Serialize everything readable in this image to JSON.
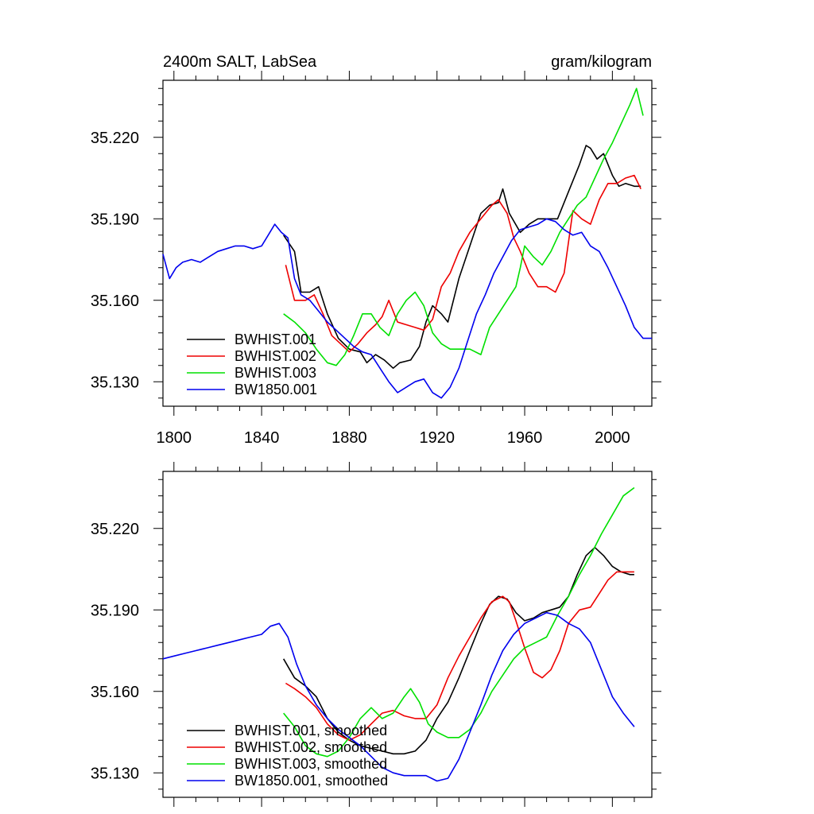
{
  "colors": {
    "BWHIST.001": "#000000",
    "BWHIST.002": "#ee0000",
    "BWHIST.003": "#00e000",
    "BW1850.001": "#0000ee"
  },
  "chart_data": [
    {
      "type": "line",
      "title": "2400m SALT, LabSea",
      "units": "gram/kilogram",
      "xlim": [
        1795,
        2018
      ],
      "ylim": [
        35.121,
        35.241
      ],
      "xticks": [
        1800,
        1840,
        1880,
        1920,
        1960,
        2000
      ],
      "xtick_labels": [
        "1800",
        "1840",
        "1880",
        "1920",
        "1960",
        "2000"
      ],
      "yticks": [
        35.13,
        35.16,
        35.19,
        35.22
      ],
      "ytick_labels": [
        "35.130",
        "35.160",
        "35.190",
        "35.220"
      ],
      "legend_position": "bottom-left",
      "series": [
        {
          "name": "BWHIST.001",
          "label": "BWHIST.001",
          "x": [
            1850,
            1855,
            1858,
            1862,
            1866,
            1870,
            1875,
            1880,
            1885,
            1888,
            1892,
            1896,
            1900,
            1903,
            1908,
            1912,
            1915,
            1918,
            1922,
            1925,
            1930,
            1935,
            1940,
            1944,
            1948,
            1950,
            1953,
            1958,
            1962,
            1966,
            1970,
            1975,
            1980,
            1985,
            1988,
            1990,
            1993,
            1996,
            2000,
            2003,
            2006,
            2010,
            2013
          ],
          "y": [
            35.184,
            35.178,
            35.163,
            35.163,
            35.165,
            35.155,
            35.146,
            35.142,
            35.141,
            35.137,
            35.14,
            35.138,
            35.135,
            35.137,
            35.138,
            35.143,
            35.152,
            35.158,
            35.155,
            35.152,
            35.168,
            35.18,
            35.192,
            35.195,
            35.196,
            35.201,
            35.192,
            35.185,
            35.188,
            35.19,
            35.19,
            35.19,
            35.2,
            35.21,
            35.217,
            35.216,
            35.212,
            35.214,
            35.206,
            35.202,
            35.203,
            35.202,
            35.202
          ]
        },
        {
          "name": "BWHIST.002",
          "label": "BWHIST.002",
          "x": [
            1851,
            1855,
            1860,
            1864,
            1868,
            1872,
            1876,
            1880,
            1884,
            1888,
            1892,
            1895,
            1898,
            1902,
            1906,
            1910,
            1914,
            1918,
            1922,
            1926,
            1930,
            1935,
            1940,
            1945,
            1948,
            1952,
            1955,
            1958,
            1962,
            1966,
            1970,
            1974,
            1978,
            1982,
            1986,
            1990,
            1994,
            1998,
            2002,
            2006,
            2010,
            2013
          ],
          "y": [
            35.173,
            35.16,
            35.16,
            35.162,
            35.155,
            35.147,
            35.144,
            35.141,
            35.144,
            35.148,
            35.151,
            35.154,
            35.16,
            35.152,
            35.151,
            35.15,
            35.149,
            35.153,
            35.165,
            35.17,
            35.178,
            35.185,
            35.19,
            35.195,
            35.197,
            35.192,
            35.183,
            35.178,
            35.17,
            35.165,
            35.165,
            35.163,
            35.17,
            35.193,
            35.19,
            35.188,
            35.197,
            35.203,
            35.203,
            35.205,
            35.206,
            35.201
          ]
        },
        {
          "name": "BWHIST.003",
          "label": "BWHIST.003",
          "x": [
            1850,
            1855,
            1860,
            1865,
            1870,
            1874,
            1878,
            1882,
            1886,
            1890,
            1894,
            1898,
            1902,
            1906,
            1910,
            1914,
            1918,
            1922,
            1926,
            1930,
            1935,
            1940,
            1944,
            1948,
            1952,
            1956,
            1958,
            1960,
            1964,
            1968,
            1972,
            1976,
            1980,
            1984,
            1988,
            1992,
            1996,
            2000,
            2004,
            2008,
            2011,
            2014
          ],
          "y": [
            35.155,
            35.152,
            35.148,
            35.142,
            35.137,
            35.136,
            35.14,
            35.147,
            35.155,
            35.155,
            35.15,
            35.147,
            35.155,
            35.16,
            35.163,
            35.158,
            35.148,
            35.144,
            35.142,
            35.142,
            35.142,
            35.14,
            35.15,
            35.155,
            35.16,
            35.165,
            35.172,
            35.18,
            35.176,
            35.173,
            35.178,
            35.185,
            35.19,
            35.195,
            35.198,
            35.205,
            35.212,
            35.218,
            35.225,
            35.232,
            35.238,
            35.228
          ]
        },
        {
          "name": "BW1850.001",
          "label": "BW1850.001",
          "x": [
            1795,
            1798,
            1801,
            1804,
            1808,
            1812,
            1816,
            1820,
            1824,
            1828,
            1832,
            1836,
            1840,
            1843,
            1846,
            1849,
            1852,
            1855,
            1858,
            1862,
            1866,
            1870,
            1874,
            1878,
            1882,
            1886,
            1890,
            1894,
            1898,
            1902,
            1906,
            1910,
            1914,
            1918,
            1922,
            1926,
            1930,
            1934,
            1938,
            1942,
            1946,
            1950,
            1954,
            1958,
            1962,
            1966,
            1970,
            1974,
            1978,
            1982,
            1986,
            1990,
            1994,
            1998,
            2002,
            2006,
            2010,
            2014,
            2018
          ],
          "y": [
            35.177,
            35.168,
            35.172,
            35.174,
            35.175,
            35.174,
            35.176,
            35.178,
            35.179,
            35.18,
            35.18,
            35.179,
            35.18,
            35.184,
            35.188,
            35.185,
            35.183,
            35.168,
            35.162,
            35.16,
            35.156,
            35.152,
            35.149,
            35.146,
            35.143,
            35.141,
            35.14,
            35.135,
            35.13,
            35.126,
            35.128,
            35.13,
            35.131,
            35.126,
            35.124,
            35.128,
            35.135,
            35.145,
            35.155,
            35.162,
            35.17,
            35.176,
            35.182,
            35.186,
            35.187,
            35.188,
            35.19,
            35.189,
            35.186,
            35.184,
            35.185,
            35.18,
            35.178,
            35.172,
            35.165,
            35.158,
            35.15,
            35.146,
            35.146
          ]
        }
      ]
    },
    {
      "type": "line",
      "title": "",
      "units": "",
      "xlim": [
        1795,
        2018
      ],
      "ylim": [
        35.121,
        35.241
      ],
      "xticks": [
        1800,
        1840,
        1880,
        1920,
        1960,
        2000
      ],
      "xtick_labels": [],
      "yticks": [
        35.13,
        35.16,
        35.19,
        35.22
      ],
      "ytick_labels": [
        "35.130",
        "35.160",
        "35.190",
        "35.220"
      ],
      "legend_position": "bottom-left",
      "series": [
        {
          "name": "BWHIST.001",
          "label": "BWHIST.001, smoothed",
          "x": [
            1850,
            1855,
            1860,
            1865,
            1870,
            1875,
            1880,
            1885,
            1890,
            1895,
            1900,
            1905,
            1910,
            1915,
            1920,
            1925,
            1930,
            1935,
            1940,
            1944,
            1948,
            1952,
            1956,
            1960,
            1964,
            1968,
            1972,
            1976,
            1980,
            1984,
            1988,
            1992,
            1996,
            2000,
            2004,
            2008,
            2010
          ],
          "y": [
            35.172,
            35.165,
            35.162,
            35.158,
            35.15,
            35.145,
            35.142,
            35.14,
            35.139,
            35.138,
            35.137,
            35.137,
            35.138,
            35.142,
            35.15,
            35.156,
            35.165,
            35.175,
            35.185,
            35.192,
            35.195,
            35.194,
            35.189,
            35.186,
            35.187,
            35.189,
            35.19,
            35.191,
            35.195,
            35.203,
            35.21,
            35.213,
            35.21,
            35.206,
            35.204,
            35.203,
            35.203
          ]
        },
        {
          "name": "BWHIST.002",
          "label": "BWHIST.002, smoothed",
          "x": [
            1851,
            1855,
            1860,
            1865,
            1870,
            1875,
            1880,
            1885,
            1890,
            1895,
            1900,
            1905,
            1910,
            1915,
            1920,
            1925,
            1930,
            1935,
            1940,
            1945,
            1950,
            1953,
            1956,
            1960,
            1964,
            1968,
            1972,
            1976,
            1980,
            1985,
            1990,
            1994,
            1998,
            2002,
            2006,
            2010
          ],
          "y": [
            35.163,
            35.161,
            35.158,
            35.154,
            35.148,
            35.144,
            35.142,
            35.144,
            35.148,
            35.152,
            35.153,
            35.151,
            35.15,
            35.15,
            35.155,
            35.165,
            35.173,
            35.18,
            35.187,
            35.193,
            35.195,
            35.193,
            35.186,
            35.176,
            35.167,
            35.165,
            35.168,
            35.175,
            35.185,
            35.19,
            35.191,
            35.196,
            35.201,
            35.204,
            35.204,
            35.204
          ]
        },
        {
          "name": "BWHIST.003",
          "label": "BWHIST.003, smoothed",
          "x": [
            1850,
            1855,
            1860,
            1865,
            1870,
            1875,
            1880,
            1885,
            1890,
            1895,
            1900,
            1905,
            1908,
            1912,
            1916,
            1920,
            1925,
            1930,
            1935,
            1940,
            1945,
            1950,
            1955,
            1960,
            1965,
            1970,
            1975,
            1980,
            1985,
            1990,
            1995,
            2000,
            2005,
            2010
          ],
          "y": [
            35.152,
            35.147,
            35.14,
            35.137,
            35.136,
            35.138,
            35.143,
            35.15,
            35.154,
            35.15,
            35.152,
            35.158,
            35.161,
            35.156,
            35.148,
            35.145,
            35.143,
            35.143,
            35.146,
            35.152,
            35.16,
            35.166,
            35.172,
            35.176,
            35.178,
            35.18,
            35.188,
            35.195,
            35.203,
            35.21,
            35.218,
            35.225,
            35.232,
            35.235
          ]
        },
        {
          "name": "BW1850.001",
          "label": "BW1850.001, smoothed",
          "x": [
            1795,
            1800,
            1805,
            1810,
            1815,
            1820,
            1825,
            1830,
            1835,
            1840,
            1844,
            1848,
            1852,
            1856,
            1860,
            1865,
            1870,
            1875,
            1880,
            1885,
            1890,
            1895,
            1900,
            1905,
            1910,
            1915,
            1920,
            1925,
            1930,
            1935,
            1940,
            1945,
            1950,
            1955,
            1960,
            1965,
            1970,
            1975,
            1980,
            1985,
            1990,
            1995,
            2000,
            2005,
            2010
          ],
          "y": [
            35.172,
            35.173,
            35.174,
            35.175,
            35.176,
            35.177,
            35.178,
            35.179,
            35.18,
            35.181,
            35.184,
            35.185,
            35.18,
            35.17,
            35.162,
            35.155,
            35.15,
            35.146,
            35.143,
            35.14,
            35.136,
            35.132,
            35.13,
            35.129,
            35.129,
            35.129,
            35.127,
            35.128,
            35.135,
            35.145,
            35.155,
            35.166,
            35.175,
            35.181,
            35.185,
            35.187,
            35.189,
            35.188,
            35.185,
            35.183,
            35.178,
            35.168,
            35.158,
            35.152,
            35.147
          ]
        }
      ]
    }
  ]
}
